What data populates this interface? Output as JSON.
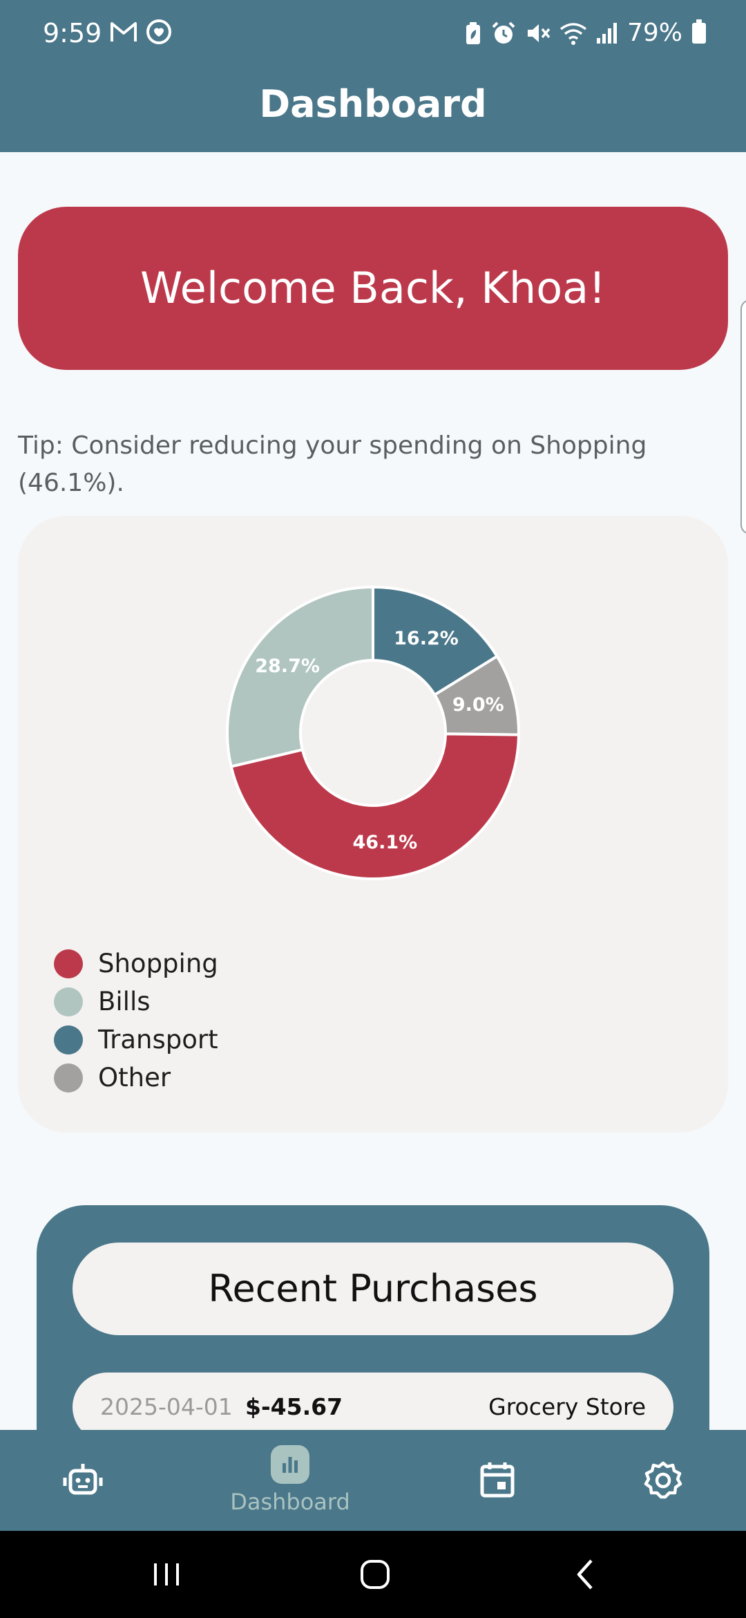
{
  "status_bar": {
    "time": "9:59",
    "battery": "79%",
    "left_icons": [
      "gmail-icon",
      "health-icon"
    ],
    "right_icons": [
      "battery-saver-icon",
      "alarm-icon",
      "mute-icon",
      "wifi-icon",
      "signal-icon"
    ]
  },
  "app_bar": {
    "title": "Dashboard"
  },
  "welcome": {
    "text": "Welcome Back, Khoa!"
  },
  "tip": {
    "text": "Tip: Consider reducing your spending on Shopping (46.1%)."
  },
  "chart_data": {
    "type": "pie",
    "variant": "donut",
    "categories": [
      "Shopping",
      "Bills",
      "Transport",
      "Other"
    ],
    "values": [
      46.1,
      28.7,
      16.2,
      9.0
    ],
    "labels": [
      "46.1%",
      "28.7%",
      "16.2%",
      "9.0%"
    ],
    "colors": [
      "#BC394B",
      "#B0C5C0",
      "#4A7789",
      "#A3A1A0"
    ],
    "legend_placement": "bottom-left",
    "title": ""
  },
  "recent_purchases": {
    "title": "Recent Purchases",
    "rows": [
      {
        "date": "2025-04-01",
        "amount": "$-45.67",
        "merchant": "Grocery Store"
      }
    ]
  },
  "bottom_nav": {
    "items": [
      {
        "icon": "robot-icon",
        "label": ""
      },
      {
        "icon": "bar-chart-icon",
        "label": "Dashboard",
        "active": true
      },
      {
        "icon": "calendar-icon",
        "label": ""
      },
      {
        "icon": "settings-icon",
        "label": ""
      }
    ]
  },
  "colors": {
    "primary": "#4A7789",
    "accent": "#BC394B",
    "card": "#F4F2F1",
    "background": "#F5F9FB"
  }
}
